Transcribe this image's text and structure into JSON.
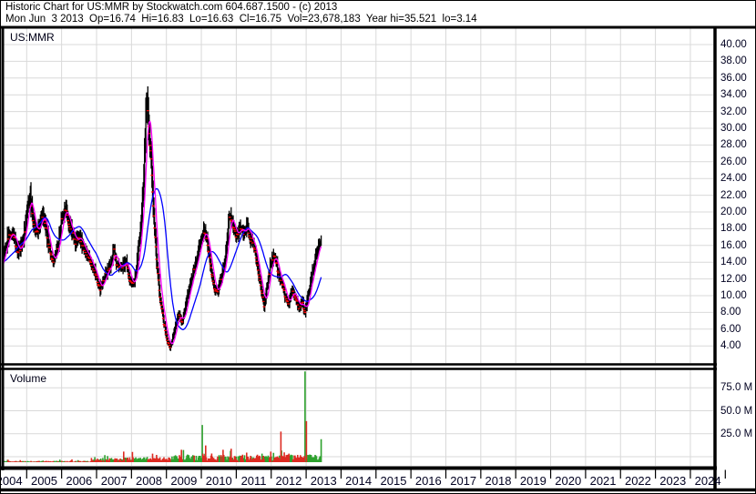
{
  "header": {
    "title": "Historic Chart for US:MMR by Stockwatch.com 604.687.1500 - (c) 2013",
    "quote": "Mon Jun  3 2013  Op=16.74  Hi=16.83  Lo=16.63  Cl=16.75  Vol=23,678,183  Year hi=35.521  lo=3.14"
  },
  "main_chart": {
    "symbol_label": "US:MMR"
  },
  "volume_panel": {
    "label": "Volume"
  },
  "price_axis": {
    "labels": [
      "40.00",
      "38.00",
      "36.00",
      "34.00",
      "32.00",
      "30.00",
      "28.00",
      "26.00",
      "24.00",
      "22.00",
      "20.00",
      "18.00",
      "16.00",
      "14.00",
      "12.00",
      "10.00",
      "8.00",
      "6.00",
      "4.00"
    ],
    "values": [
      40,
      38,
      36,
      34,
      32,
      30,
      28,
      26,
      24,
      22,
      20,
      18,
      16,
      14,
      12,
      10,
      8,
      6,
      4
    ]
  },
  "volume_axis": {
    "labels": [
      "75.0 M",
      "50.0 M",
      "25.0 M"
    ],
    "values": [
      75,
      50,
      25
    ]
  },
  "x_axis": {
    "years": [
      "2004",
      "2005",
      "2006",
      "2007",
      "2008",
      "2009",
      "2010",
      "2011",
      "2012",
      "2013",
      "2014",
      "2015",
      "2016",
      "2017",
      "2018",
      "2019",
      "2020",
      "2021",
      "2022",
      "2023",
      "2024"
    ]
  },
  "colors": {
    "background": "#ffffff",
    "grid": "#d9d9d9",
    "border": "#000000",
    "price_bars": "#000000",
    "down_tick": "#ff0000",
    "ma_short": "#ff00ff",
    "ma_long": "#0000ff",
    "volume_up": "#2da12d",
    "volume_down": "#dd2b22",
    "axis_text": "#000020"
  },
  "chart_data": {
    "type": "ohlc+volume",
    "symbol": "US:MMR",
    "date_label": "Mon Jun 3 2013",
    "stats": {
      "open": 16.74,
      "high": 16.83,
      "low": 16.63,
      "close": 16.75,
      "volume": "23,678,183",
      "year_high": 35.521,
      "year_low": 3.14
    },
    "x_range": [
      2004,
      2024.9
    ],
    "data_range": [
      2004.35,
      2013.44
    ],
    "price_ylim": [
      4,
      40
    ],
    "volume_ylim_m": [
      0,
      100
    ],
    "price_anchors": [
      [
        2003.3,
        14.0
      ],
      [
        2003.6,
        13.5
      ],
      [
        2003.9,
        14.5
      ],
      [
        2004.05,
        15.2
      ],
      [
        2004.15,
        12.3
      ],
      [
        2004.3,
        14.0
      ],
      [
        2004.45,
        16.8
      ],
      [
        2004.6,
        17.6
      ],
      [
        2004.75,
        15.2
      ],
      [
        2004.9,
        16.5
      ],
      [
        2005.05,
        21.0
      ],
      [
        2005.1,
        22.0
      ],
      [
        2005.2,
        18.5
      ],
      [
        2005.3,
        17.5
      ],
      [
        2005.45,
        19.8
      ],
      [
        2005.6,
        17.0
      ],
      [
        2005.75,
        13.9
      ],
      [
        2005.9,
        16.0
      ],
      [
        2006.0,
        19.2
      ],
      [
        2006.1,
        20.6
      ],
      [
        2006.25,
        18.2
      ],
      [
        2006.4,
        16.2
      ],
      [
        2006.5,
        17.3
      ],
      [
        2006.65,
        15.3
      ],
      [
        2006.8,
        14.6
      ],
      [
        2006.95,
        12.8
      ],
      [
        2007.1,
        10.8
      ],
      [
        2007.25,
        12.6
      ],
      [
        2007.4,
        13.8
      ],
      [
        2007.5,
        15.5
      ],
      [
        2007.55,
        14.0
      ],
      [
        2007.7,
        13.3
      ],
      [
        2007.85,
        14.2
      ],
      [
        2007.95,
        11.8
      ],
      [
        2008.05,
        11.2
      ],
      [
        2008.15,
        13.5
      ],
      [
        2008.25,
        17.5
      ],
      [
        2008.33,
        22.0
      ],
      [
        2008.4,
        30.0
      ],
      [
        2008.44,
        34.5
      ],
      [
        2008.5,
        29.0
      ],
      [
        2008.56,
        27.5
      ],
      [
        2008.62,
        21.0
      ],
      [
        2008.7,
        15.5
      ],
      [
        2008.8,
        10.5
      ],
      [
        2008.9,
        7.5
      ],
      [
        2009.0,
        5.0
      ],
      [
        2009.1,
        3.8
      ],
      [
        2009.15,
        4.3
      ],
      [
        2009.25,
        6.3
      ],
      [
        2009.35,
        7.8
      ],
      [
        2009.45,
        6.8
      ],
      [
        2009.55,
        8.6
      ],
      [
        2009.65,
        11.0
      ],
      [
        2009.75,
        12.5
      ],
      [
        2009.85,
        14.0
      ],
      [
        2009.95,
        15.8
      ],
      [
        2010.08,
        17.8
      ],
      [
        2010.15,
        17.0
      ],
      [
        2010.25,
        14.0
      ],
      [
        2010.35,
        11.2
      ],
      [
        2010.46,
        10.2
      ],
      [
        2010.55,
        12.0
      ],
      [
        2010.65,
        13.5
      ],
      [
        2010.72,
        16.0
      ],
      [
        2010.8,
        19.5
      ],
      [
        2010.9,
        18.5
      ],
      [
        2011.0,
        17.0
      ],
      [
        2011.1,
        18.3
      ],
      [
        2011.2,
        17.2
      ],
      [
        2011.3,
        18.6
      ],
      [
        2011.4,
        17.0
      ],
      [
        2011.5,
        16.2
      ],
      [
        2011.6,
        14.0
      ],
      [
        2011.7,
        11.0
      ],
      [
        2011.8,
        8.8
      ],
      [
        2011.9,
        11.5
      ],
      [
        2012.0,
        14.2
      ],
      [
        2012.1,
        15.0
      ],
      [
        2012.2,
        12.8
      ],
      [
        2012.3,
        11.6
      ],
      [
        2012.4,
        10.0
      ],
      [
        2012.5,
        9.0
      ],
      [
        2012.6,
        10.6
      ],
      [
        2012.7,
        9.8
      ],
      [
        2012.8,
        8.6
      ],
      [
        2012.9,
        9.4
      ],
      [
        2012.96,
        7.8
      ],
      [
        2013.05,
        9.8
      ],
      [
        2013.15,
        12.2
      ],
      [
        2013.25,
        14.2
      ],
      [
        2013.35,
        15.8
      ],
      [
        2013.44,
        16.75
      ]
    ],
    "volume_spikes_m": [
      [
        2007.77,
        11,
        "down"
      ],
      [
        2008.6,
        9,
        "down"
      ],
      [
        2009.44,
        13,
        "down"
      ],
      [
        2009.6,
        8,
        "up"
      ],
      [
        2010.02,
        39,
        "up"
      ],
      [
        2010.05,
        9,
        "down"
      ],
      [
        2010.62,
        13,
        "down"
      ],
      [
        2010.86,
        14,
        "down"
      ],
      [
        2011.3,
        10,
        "down"
      ],
      [
        2011.74,
        9,
        "up"
      ],
      [
        2011.98,
        11,
        "down"
      ],
      [
        2012.27,
        32,
        "down"
      ],
      [
        2012.5,
        9,
        "down"
      ],
      [
        2012.96,
        95,
        "up"
      ],
      [
        2013.01,
        43,
        "down"
      ],
      [
        2013.1,
        8,
        "up"
      ],
      [
        2013.44,
        24,
        "up"
      ]
    ],
    "volume_profile_m": [
      [
        2003.2,
        2006.85,
        0.9
      ],
      [
        2006.85,
        2009.2,
        3.2
      ],
      [
        2009.2,
        2013.5,
        4.8
      ]
    ],
    "moving_averages": {
      "short_weeks": 8,
      "long_weeks": 30
    }
  }
}
